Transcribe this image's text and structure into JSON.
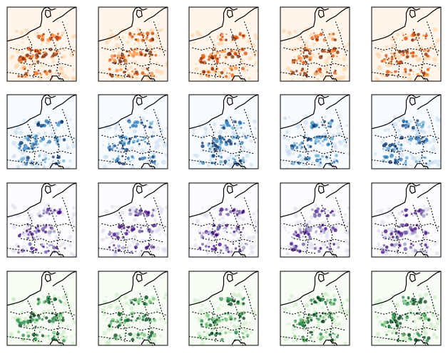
{
  "figure": {
    "rows": [
      {
        "palette": "oranges",
        "colors": [
          "#fff5eb",
          "#fdd0a2",
          "#fd8d3c",
          "#d94801",
          "#7f2704"
        ]
      },
      {
        "palette": "blues",
        "colors": [
          "#f7fbff",
          "#c6dbef",
          "#6baed6",
          "#2171b5",
          "#08306b"
        ]
      },
      {
        "palette": "purples",
        "colors": [
          "#fcfbfd",
          "#dadaeb",
          "#9e9ac8",
          "#6a51a3",
          "#3f007d"
        ]
      },
      {
        "palette": "greens",
        "colors": [
          "#f7fcf5",
          "#c7e9c0",
          "#74c476",
          "#238b45",
          "#00441b"
        ]
      }
    ],
    "columns": 5,
    "coastline_color": "#000000",
    "border_style": "dotted"
  }
}
